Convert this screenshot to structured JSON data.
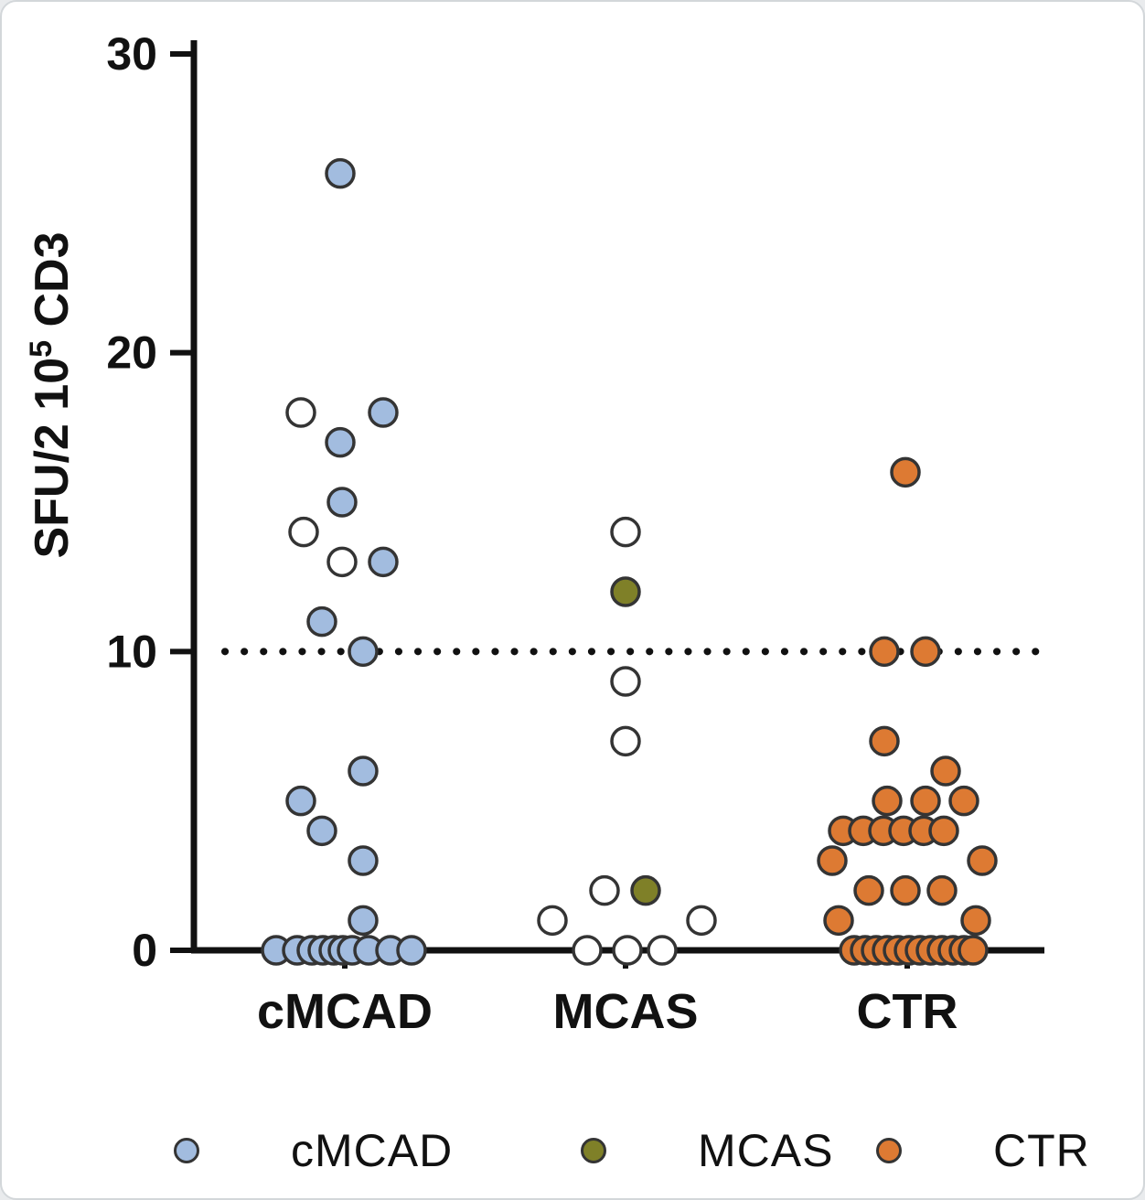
{
  "figure": {
    "background": "#ffffff",
    "border_color": "#d3d7da",
    "axis_color": "#111111",
    "marker_stroke": "#343434"
  },
  "chart_data": {
    "type": "scatter",
    "title": "",
    "xlabel": "",
    "ylabel": "SFU/2 10^5 CD3",
    "ylabel_parts": {
      "prefix": "SFU/2 10",
      "superscript": "5",
      "suffix": " CD3"
    },
    "ylim": [
      0,
      30
    ],
    "yticks": [
      0,
      10,
      20,
      30
    ],
    "dotted_threshold_y": 10,
    "grid": false,
    "legend_position": "bottom",
    "categories": [
      "cMCAD",
      "MCAS",
      "CTR"
    ],
    "marker_stroke": "#343434",
    "series": [
      {
        "name": "cMCAD",
        "marker_fill": "#a2bcdf",
        "points_filled": [
          [
            -5,
            26
          ],
          [
            42,
            18
          ],
          [
            -5,
            17
          ],
          [
            -3,
            15
          ],
          [
            42,
            13
          ],
          [
            -25,
            11
          ],
          [
            20,
            10
          ],
          [
            20,
            6
          ],
          [
            -48,
            5
          ],
          [
            -25,
            4
          ],
          [
            20,
            3
          ],
          [
            20,
            1
          ],
          [
            -75,
            0
          ],
          [
            -52,
            0
          ],
          [
            -36,
            0
          ],
          [
            -24,
            0
          ],
          [
            -12,
            0
          ],
          [
            -2,
            0
          ],
          [
            8,
            0
          ],
          [
            26,
            0
          ],
          [
            50,
            0
          ],
          [
            73,
            0
          ]
        ],
        "points_open": [
          [
            -48,
            18
          ],
          [
            -45,
            14
          ],
          [
            -3,
            13
          ]
        ]
      },
      {
        "name": "MCAS",
        "marker_fill": "#7f8028",
        "points_filled": [
          [
            0,
            12
          ],
          [
            22,
            2
          ]
        ],
        "points_open": [
          [
            0,
            14
          ],
          [
            0,
            9
          ],
          [
            0,
            7
          ],
          [
            -23,
            2
          ],
          [
            -80,
            1
          ],
          [
            83,
            1
          ],
          [
            -42,
            0
          ],
          [
            2,
            0
          ],
          [
            40,
            0
          ]
        ]
      },
      {
        "name": "CTR",
        "marker_fill": "#dd7a33",
        "points_filled": [
          [
            -2,
            16
          ],
          [
            -25,
            10
          ],
          [
            20,
            10
          ],
          [
            -25,
            7
          ],
          [
            42,
            6
          ],
          [
            -22,
            5
          ],
          [
            20,
            5
          ],
          [
            62,
            5
          ],
          [
            -70,
            4
          ],
          [
            -48,
            4
          ],
          [
            -26,
            4
          ],
          [
            -4,
            4
          ],
          [
            18,
            4
          ],
          [
            40,
            4
          ],
          [
            -82,
            3
          ],
          [
            82,
            3
          ],
          [
            -42,
            2
          ],
          [
            -2,
            2
          ],
          [
            38,
            2
          ],
          [
            -75,
            1
          ],
          [
            75,
            1
          ],
          [
            -58,
            0
          ],
          [
            -46,
            0
          ],
          [
            -34,
            0
          ],
          [
            -22,
            0
          ],
          [
            -10,
            0
          ],
          [
            2,
            0
          ],
          [
            14,
            0
          ],
          [
            26,
            0
          ],
          [
            38,
            0
          ],
          [
            50,
            0
          ],
          [
            62,
            0
          ],
          [
            72,
            0
          ]
        ],
        "points_open": []
      }
    ]
  },
  "legend": {
    "items": [
      {
        "label": "cMCAD",
        "color": "#a2bcdf"
      },
      {
        "label": "MCAS",
        "color": "#7f8028"
      },
      {
        "label": "CTR",
        "color": "#dd7a33"
      }
    ]
  }
}
